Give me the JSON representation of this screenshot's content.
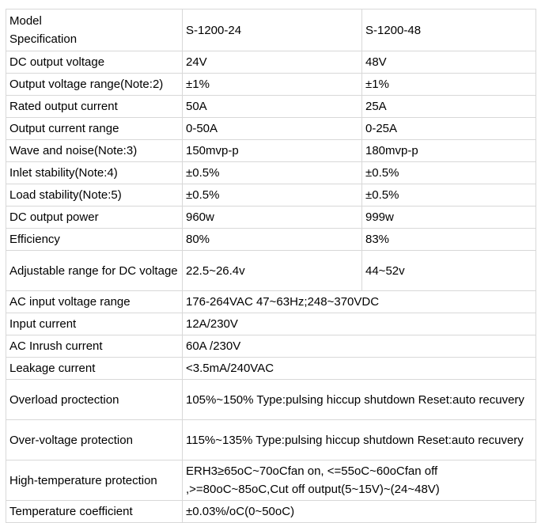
{
  "table": {
    "header": {
      "label_line1": "Model",
      "label_line2": "Specification",
      "model1": "S-1200-24",
      "model2": "S-1200-48"
    },
    "rows": [
      {
        "label": "DC output voltage",
        "v1": "24V",
        "v2": "48V"
      },
      {
        "label": "Output voltage range(Note:2)",
        "v1": "±1%",
        "v2": "±1%"
      },
      {
        "label": "Rated output current",
        "v1": "50A",
        "v2": "25A"
      },
      {
        "label": "Output current range",
        "v1": "0-50A",
        "v2": "0-25A"
      },
      {
        "label": "Wave and noise(Note:3)",
        "v1": "150mvp-p",
        "v2": "180mvp-p"
      },
      {
        "label": "Inlet stability(Note:4)",
        "v1": "±0.5%",
        "v2": "±0.5%"
      },
      {
        "label": "Load stability(Note:5)",
        "v1": "±0.5%",
        "v2": "±0.5%"
      },
      {
        "label": "DC output power",
        "v1": "960w",
        "v2": "999w"
      },
      {
        "label": "Efficiency",
        "v1": "80%",
        "v2": "83%"
      },
      {
        "label": "Adjustable range for DC voltage",
        "v1": "22.5~26.4v",
        "v2": "44~52v"
      }
    ],
    "shared_rows": [
      {
        "label": "AC input voltage range",
        "value": "176-264VAC 47~63Hz;248~370VDC"
      },
      {
        "label": "Input current",
        "value": "12A/230V"
      },
      {
        "label": "AC Inrush current",
        "value": "60A /230V"
      },
      {
        "label": "Leakage current",
        "value": "<3.5mA/240VAC"
      },
      {
        "label": "Overload proctection",
        "value": "105%~150% Type:pulsing hiccup shutdown Reset:auto recuvery"
      },
      {
        "label": "Over-voltage protection",
        "value": "115%~135% Type:pulsing hiccup shutdown Reset:auto recuvery"
      },
      {
        "label": "High-temperature protection",
        "value": "ERH3≥65oC~70oCfan on, <=55oC~60oCfan off ,>=80oC~85oC,Cut off output(5~15V)~(24~48V)"
      },
      {
        "label": "Temperature coefficient",
        "value": "±0.03%/oC(0~50oC)"
      }
    ]
  }
}
